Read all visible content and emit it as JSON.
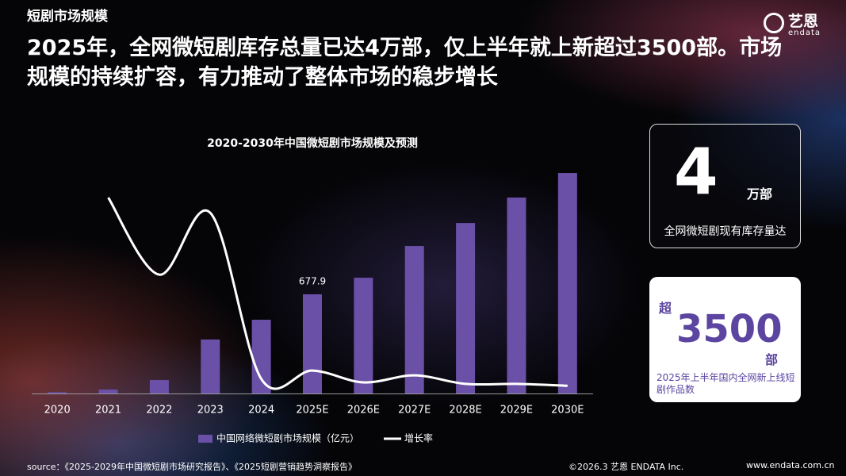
{
  "header": {
    "section": "短剧市场规模",
    "title": "2025年，全网微短剧库存总量已达4万部，仅上半年就上新超过3500部。市场规模的持续扩容，有力推动了整体市场的稳步增长",
    "logo": "艺恩",
    "logo_sub": "endata"
  },
  "chart_data": {
    "type": "bar",
    "title": "2020-2030年中国微短剧市场规模及预测",
    "categories": [
      "2020",
      "2021",
      "2022",
      "2023",
      "2024",
      "2025E",
      "2026E",
      "2027E",
      "2028E",
      "2029E",
      "2030E"
    ],
    "series": [
      {
        "name": "中国网络微短剧市场规模（亿元）",
        "type": "bar",
        "color": "#6a50a7",
        "values": [
          9,
          27,
          92,
          369,
          504,
          677.9,
          791,
          1008,
          1165,
          1339,
          1507
        ],
        "value_labels": [
          null,
          null,
          null,
          null,
          null,
          "677.9",
          null,
          null,
          null,
          null,
          null
        ]
      },
      {
        "name": "增长率",
        "type": "line",
        "axis": "y2",
        "color": "#ffffff",
        "values": [
          null,
          529,
          321,
          488,
          39,
          62,
          30,
          49,
          26,
          26,
          21
        ]
      }
    ],
    "ylim": [
      0,
      1518
    ],
    "y2lim": [
      0,
      600
    ],
    "legend": "bottom"
  },
  "cards": [
    {
      "value": "4",
      "unit": "万部",
      "caption": "全网微短剧现有库存量达"
    },
    {
      "prefix": "超",
      "value": "3500",
      "unit": "部",
      "caption": "2025年上半年国内全网新上线短剧作品数"
    }
  ],
  "footer": {
    "source": "source：《2025-2029年中国微短剧市场研究报告》、《2025短剧营销趋势洞察报告》",
    "copyright": "©2026.3  艺恩 ENDATA Inc.",
    "url": "www.endata.com.cn"
  }
}
